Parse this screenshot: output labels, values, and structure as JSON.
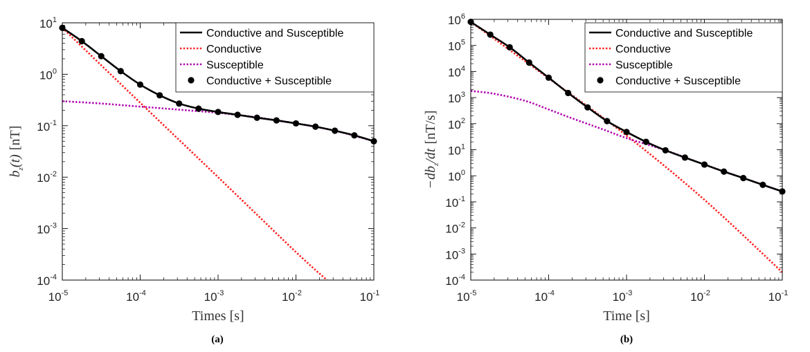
{
  "chart_data": [
    {
      "type": "line",
      "panel_label": "(a)",
      "xlabel": "Times [s]",
      "ylabel": "b_z(t) [nT]",
      "ylabel_parts": {
        "b": "b",
        "sub": "z",
        "t": "(t)",
        "unit": "[nT]"
      },
      "xlim": [
        1e-05,
        0.1
      ],
      "ylim": [
        0.0001,
        10
      ],
      "xscale": "log",
      "yscale": "log",
      "x_ticks": [
        {
          "base": "10",
          "exp": "-5"
        },
        {
          "base": "10",
          "exp": "-4"
        },
        {
          "base": "10",
          "exp": "-3"
        },
        {
          "base": "10",
          "exp": "-2"
        },
        {
          "base": "10",
          "exp": "-1"
        }
      ],
      "y_ticks": [
        {
          "base": "10",
          "exp": "-4"
        },
        {
          "base": "10",
          "exp": "-3"
        },
        {
          "base": "10",
          "exp": "-2"
        },
        {
          "base": "10",
          "exp": "-1"
        },
        {
          "base": "10",
          "exp": "0"
        },
        {
          "base": "10",
          "exp": "1"
        }
      ],
      "legend_position": "top-right",
      "grid": false,
      "series": [
        {
          "name": "Conductive and Susceptible",
          "style": "solid",
          "color": "#000000",
          "x": [
            1e-05,
            1.78e-05,
            3.16e-05,
            5.62e-05,
            0.0001,
            0.000178,
            0.000316,
            0.000562,
            0.001,
            0.00178,
            0.00316,
            0.00562,
            0.01,
            0.0178,
            0.0316,
            0.0562,
            0.1
          ],
          "y": [
            8.0,
            4.4,
            2.25,
            1.15,
            0.63,
            0.39,
            0.27,
            0.215,
            0.185,
            0.163,
            0.143,
            0.127,
            0.111,
            0.096,
            0.08,
            0.065,
            0.05
          ]
        },
        {
          "name": "Conductive",
          "style": "dotted",
          "color": "#ff2020",
          "x": [
            1e-05,
            0.0001,
            0.001,
            0.01,
            0.025
          ],
          "y": [
            8.0,
            0.28,
            0.01,
            0.00035,
            0.0001
          ]
        },
        {
          "name": "Susceptible",
          "style": "dotted",
          "color": "#b000b0",
          "x": [
            1e-05,
            3.16e-05,
            0.0001,
            0.000316,
            0.001,
            0.00316,
            0.01,
            0.0316,
            0.1
          ],
          "y": [
            0.3,
            0.27,
            0.235,
            0.205,
            0.178,
            0.145,
            0.111,
            0.08,
            0.05
          ]
        },
        {
          "name": "Conductive + Susceptible",
          "style": "markers",
          "color": "#000000",
          "x": [
            1e-05,
            1.78e-05,
            3.16e-05,
            5.62e-05,
            0.0001,
            0.000178,
            0.000316,
            0.000562,
            0.001,
            0.00178,
            0.00316,
            0.00562,
            0.01,
            0.0178,
            0.0316,
            0.0562,
            0.1
          ],
          "y": [
            8.0,
            4.4,
            2.25,
            1.15,
            0.63,
            0.39,
            0.27,
            0.215,
            0.185,
            0.163,
            0.143,
            0.127,
            0.111,
            0.096,
            0.08,
            0.065,
            0.05
          ]
        }
      ]
    },
    {
      "type": "line",
      "panel_label": "(b)",
      "xlabel": "Time [s]",
      "ylabel": "−db_z/dt [nT/s]",
      "ylabel_parts": {
        "prefix": "−db",
        "sub": "z",
        "suffix": "/dt",
        "unit": "[nT/s]"
      },
      "xlim": [
        1e-05,
        0.1
      ],
      "ylim": [
        0.0001,
        1000000.0
      ],
      "xscale": "log",
      "yscale": "log",
      "x_ticks": [
        {
          "base": "10",
          "exp": "-5"
        },
        {
          "base": "10",
          "exp": "-4"
        },
        {
          "base": "10",
          "exp": "-3"
        },
        {
          "base": "10",
          "exp": "-2"
        },
        {
          "base": "10",
          "exp": "-1"
        }
      ],
      "y_ticks": [
        {
          "base": "10",
          "exp": "-4"
        },
        {
          "base": "10",
          "exp": "-3"
        },
        {
          "base": "10",
          "exp": "-2"
        },
        {
          "base": "10",
          "exp": "-1"
        },
        {
          "base": "10",
          "exp": "0"
        },
        {
          "base": "10",
          "exp": "1"
        },
        {
          "base": "10",
          "exp": "2"
        },
        {
          "base": "10",
          "exp": "3"
        },
        {
          "base": "10",
          "exp": "4"
        },
        {
          "base": "10",
          "exp": "5"
        },
        {
          "base": "10",
          "exp": "6"
        }
      ],
      "legend_position": "top-right",
      "grid": false,
      "series": [
        {
          "name": "Conductive and Susceptible",
          "style": "solid",
          "color": "#000000",
          "x": [
            1e-05,
            1.78e-05,
            3.16e-05,
            5.62e-05,
            0.0001,
            0.000178,
            0.000316,
            0.000562,
            0.001,
            0.00178,
            0.00316,
            0.00562,
            0.01,
            0.0178,
            0.0316,
            0.0562,
            0.1
          ],
          "y": [
            800000,
            260000,
            85000,
            22000,
            5800,
            1500,
            420,
            125,
            48,
            20,
            9.5,
            5.0,
            2.7,
            1.45,
            0.82,
            0.45,
            0.25
          ]
        },
        {
          "name": "Conductive",
          "style": "dotted",
          "color": "#ff2020",
          "x": [
            1e-05,
            0.0001,
            0.001,
            0.01,
            0.1
          ],
          "y": [
            800000,
            5500,
            35,
            0.12,
            0.0002
          ]
        },
        {
          "name": "Susceptible",
          "style": "dotted",
          "color": "#b000b0",
          "x": [
            1e-05,
            2e-05,
            5e-05,
            0.0001,
            0.0002,
            0.0005,
            0.001,
            0.00316,
            0.01,
            0.0316,
            0.1
          ],
          "y": [
            1800,
            1400,
            750,
            350,
            160,
            60,
            28,
            9.5,
            2.7,
            0.82,
            0.25
          ]
        },
        {
          "name": "Conductive + Susceptible",
          "style": "markers",
          "color": "#000000",
          "x": [
            1e-05,
            1.78e-05,
            3.16e-05,
            5.62e-05,
            0.0001,
            0.000178,
            0.000316,
            0.000562,
            0.001,
            0.00178,
            0.00316,
            0.00562,
            0.01,
            0.0178,
            0.0316,
            0.0562,
            0.1
          ],
          "y": [
            800000,
            260000,
            85000,
            22000,
            5800,
            1500,
            420,
            125,
            48,
            20,
            9.5,
            5.0,
            2.7,
            1.45,
            0.82,
            0.45,
            0.25
          ]
        }
      ]
    }
  ]
}
